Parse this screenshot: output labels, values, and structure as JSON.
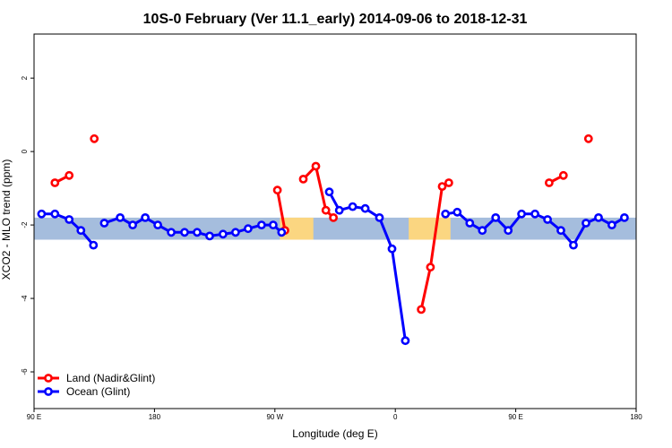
{
  "chart_data": {
    "type": "line",
    "title": "10S-0 February (Ver 11.1_early)   2014-09-06 to 2018-12-31",
    "xlabel": "Longitude (deg E)",
    "ylabel": "XCO2 - MLO trend (ppm)",
    "xlim": [
      90,
      450
    ],
    "ylim": [
      -7,
      3.2
    ],
    "x_ticks": [
      {
        "value": 90,
        "label": "90 E"
      },
      {
        "value": 162,
        "label": "180"
      },
      {
        "value": 234,
        "label": "90 W"
      },
      {
        "value": 306,
        "label": "0"
      },
      {
        "value": 378,
        "label": "90 E"
      },
      {
        "value": 450,
        "label": "180"
      }
    ],
    "y_ticks": [
      {
        "value": 2,
        "label": "2"
      },
      {
        "value": 0,
        "label": "0"
      },
      {
        "value": -2,
        "label": "-2"
      },
      {
        "value": -4,
        "label": "-4"
      },
      {
        "value": -6,
        "label": "-6"
      }
    ],
    "background_band": {
      "ymin": -2.4,
      "ymax": -1.8,
      "ocean_color": "#a5bddd",
      "land_color": "#fbd681"
    },
    "land_band_segments": [
      [
        237,
        257
      ],
      [
        314,
        339
      ]
    ],
    "legend_position": "bottom-left",
    "series": [
      {
        "name": "Land (Nadir&Glint)",
        "color": "#ff0000",
        "segments": [
          [
            [
              102.5,
              -0.85
            ],
            [
              111,
              -0.65
            ]
          ],
          [
            [
              126,
              0.35
            ]
          ],
          [
            [
              235.5,
              -1.05
            ],
            [
              240,
              -2.15
            ]
          ],
          [
            [
              251,
              -0.75
            ],
            [
              258.5,
              -0.4
            ],
            [
              264.5,
              -1.6
            ],
            [
              269,
              -1.8
            ]
          ],
          [
            [
              321.5,
              -4.3
            ],
            [
              327,
              -3.15
            ],
            [
              334,
              -0.95
            ],
            [
              338,
              -0.85
            ]
          ],
          [
            [
              398,
              -0.85
            ],
            [
              406.5,
              -0.65
            ]
          ],
          [
            [
              421.5,
              0.35
            ]
          ]
        ]
      },
      {
        "name": "Ocean (Glint)",
        "color": "#0000ff",
        "segments": [
          [
            [
              94.5,
              -1.7
            ],
            [
              102.5,
              -1.7
            ],
            [
              111,
              -1.85
            ],
            [
              118,
              -2.15
            ],
            [
              125.5,
              -2.55
            ]
          ],
          [
            [
              132,
              -1.95
            ],
            [
              141.5,
              -1.8
            ],
            [
              149,
              -2.0
            ],
            [
              156.5,
              -1.8
            ],
            [
              164,
              -2.0
            ],
            [
              172,
              -2.2
            ],
            [
              180,
              -2.2
            ],
            [
              187.5,
              -2.2
            ],
            [
              195,
              -2.3
            ],
            [
              203,
              -2.25
            ],
            [
              210.5,
              -2.2
            ],
            [
              218,
              -2.1
            ],
            [
              226,
              -2.0
            ],
            [
              233,
              -2.0
            ],
            [
              238,
              -2.2
            ]
          ],
          [
            [
              266.5,
              -1.1
            ],
            [
              272.5,
              -1.6
            ],
            [
              280.5,
              -1.5
            ],
            [
              288,
              -1.55
            ],
            [
              296.5,
              -1.8
            ],
            [
              304,
              -2.65
            ],
            [
              312,
              -5.15
            ]
          ],
          [
            [
              336,
              -1.7
            ],
            [
              343,
              -1.65
            ],
            [
              350.5,
              -1.95
            ],
            [
              358,
              -2.15
            ],
            [
              366,
              -1.8
            ],
            [
              373.5,
              -2.15
            ],
            [
              381.5,
              -1.7
            ],
            [
              389.5,
              -1.7
            ],
            [
              397,
              -1.85
            ],
            [
              405,
              -2.15
            ],
            [
              412.5,
              -2.55
            ],
            [
              420,
              -1.95
            ],
            [
              427.5,
              -1.8
            ],
            [
              435.5,
              -2.0
            ],
            [
              443,
              -1.8
            ]
          ]
        ]
      }
    ]
  }
}
